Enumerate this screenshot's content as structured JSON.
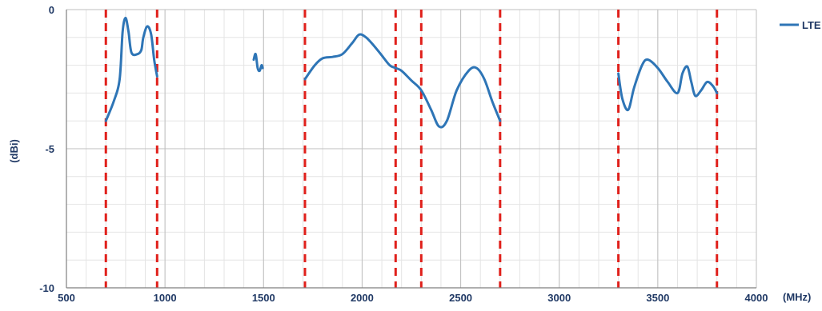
{
  "chart_data": {
    "type": "line",
    "title": "",
    "xlabel": "(MHz)",
    "ylabel": "(dBi)",
    "xlim": [
      500,
      4000
    ],
    "ylim": [
      -10,
      0
    ],
    "x_major_ticks": [
      500,
      1000,
      1500,
      2000,
      2500,
      3000,
      3500,
      4000
    ],
    "x_minor_step": 100,
    "y_major_ticks": [
      -10,
      -5,
      0
    ],
    "y_minor_step": 1,
    "grid": true,
    "legend_position": "top-right",
    "colors": {
      "series": "#2e75b6",
      "band_marker": "#e0201b",
      "text": "#1f3864",
      "grid": "#d9d9d9"
    },
    "band_markers_x": [
      700,
      960,
      1710,
      2170,
      2300,
      2700,
      3300,
      3800
    ],
    "series": [
      {
        "name": "LTE",
        "segments": [
          [
            [
              700,
              -4.0
            ],
            [
              740,
              -3.3
            ],
            [
              770,
              -2.5
            ],
            [
              785,
              -0.8
            ],
            [
              800,
              -0.3
            ],
            [
              815,
              -0.8
            ],
            [
              830,
              -1.55
            ],
            [
              860,
              -1.6
            ],
            [
              880,
              -1.45
            ],
            [
              890,
              -1.0
            ],
            [
              910,
              -0.6
            ],
            [
              930,
              -0.9
            ],
            [
              945,
              -1.8
            ],
            [
              960,
              -2.4
            ]
          ],
          [
            [
              1450,
              -1.8
            ],
            [
              1460,
              -1.6
            ],
            [
              1470,
              -2.1
            ],
            [
              1480,
              -2.2
            ],
            [
              1490,
              -2.0
            ],
            [
              1495,
              -2.1
            ]
          ],
          [
            [
              1710,
              -2.5
            ],
            [
              1760,
              -2.0
            ],
            [
              1800,
              -1.75
            ],
            [
              1850,
              -1.7
            ],
            [
              1900,
              -1.6
            ],
            [
              1950,
              -1.2
            ],
            [
              1985,
              -0.9
            ],
            [
              2020,
              -1.0
            ],
            [
              2060,
              -1.3
            ],
            [
              2100,
              -1.65
            ],
            [
              2140,
              -2.0
            ],
            [
              2170,
              -2.1
            ],
            [
              2200,
              -2.2
            ],
            [
              2250,
              -2.55
            ],
            [
              2300,
              -2.9
            ],
            [
              2350,
              -3.6
            ],
            [
              2390,
              -4.2
            ],
            [
              2430,
              -4.0
            ],
            [
              2480,
              -2.9
            ],
            [
              2540,
              -2.2
            ],
            [
              2580,
              -2.1
            ],
            [
              2620,
              -2.5
            ],
            [
              2660,
              -3.3
            ],
            [
              2700,
              -4.0
            ]
          ],
          [
            [
              3300,
              -2.3
            ],
            [
              3320,
              -3.2
            ],
            [
              3350,
              -3.6
            ],
            [
              3380,
              -2.8
            ],
            [
              3420,
              -2.0
            ],
            [
              3450,
              -1.8
            ],
            [
              3500,
              -2.1
            ],
            [
              3550,
              -2.6
            ],
            [
              3600,
              -3.0
            ],
            [
              3625,
              -2.3
            ],
            [
              3650,
              -2.05
            ],
            [
              3670,
              -2.6
            ],
            [
              3690,
              -3.1
            ],
            [
              3720,
              -2.9
            ],
            [
              3750,
              -2.6
            ],
            [
              3780,
              -2.75
            ],
            [
              3800,
              -3.0
            ]
          ]
        ]
      }
    ]
  }
}
